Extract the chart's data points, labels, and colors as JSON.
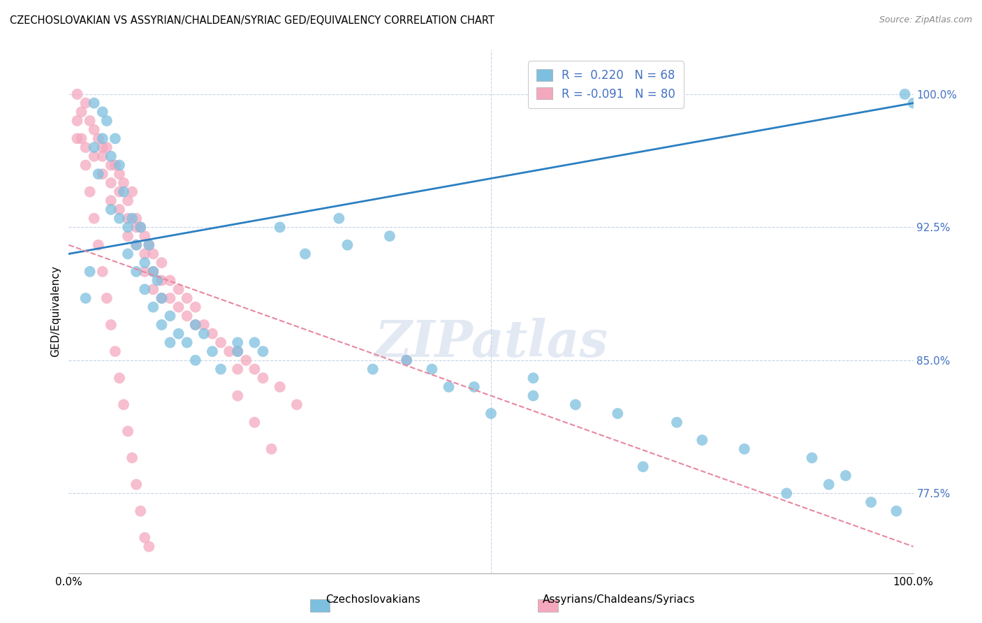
{
  "title": "CZECHOSLOVAKIAN VS ASSYRIAN/CHALDEAN/SYRIAC GED/EQUIVALENCY CORRELATION CHART",
  "source": "Source: ZipAtlas.com",
  "ylabel": "GED/Equivalency",
  "watermark": "ZIPatlas",
  "blue_R": 0.22,
  "blue_N": 68,
  "pink_R": -0.091,
  "pink_N": 80,
  "blue_color": "#7dbfdf",
  "pink_color": "#f4a8be",
  "blue_line_color": "#2b7fc1",
  "pink_line_color": "#e8879e",
  "background_color": "#ffffff",
  "grid_color": "#c8d4e8",
  "title_color": "#000000",
  "source_color": "#888888",
  "tick_color": "#4472c4",
  "xlim": [
    0.0,
    1.0
  ],
  "ylim": [
    73.0,
    102.5
  ],
  "y_ticks": [
    77.5,
    85.0,
    92.5,
    100.0
  ],
  "y_tick_labels": [
    "77.5%",
    "85.0%",
    "92.5%",
    "100.0%"
  ],
  "blue_line_x": [
    0.0,
    1.0
  ],
  "blue_line_y": [
    91.0,
    99.5
  ],
  "pink_line_x": [
    0.0,
    1.0
  ],
  "pink_line_y": [
    91.5,
    74.5
  ],
  "blue_x": [
    0.02,
    0.025,
    0.03,
    0.03,
    0.035,
    0.04,
    0.04,
    0.045,
    0.05,
    0.05,
    0.055,
    0.06,
    0.06,
    0.065,
    0.07,
    0.07,
    0.075,
    0.08,
    0.08,
    0.085,
    0.09,
    0.09,
    0.095,
    0.1,
    0.1,
    0.105,
    0.11,
    0.11,
    0.12,
    0.12,
    0.13,
    0.14,
    0.15,
    0.15,
    0.16,
    0.17,
    0.18,
    0.2,
    0.22,
    0.25,
    0.28,
    0.32,
    0.38,
    0.43,
    0.48,
    0.55,
    0.6,
    0.65,
    0.68,
    0.72,
    0.75,
    0.8,
    0.85,
    0.88,
    0.9,
    0.92,
    0.95,
    0.98,
    0.99,
    1.0,
    0.33,
    0.36,
    0.4,
    0.45,
    0.5,
    0.55,
    0.2,
    0.23
  ],
  "blue_y": [
    88.5,
    90.0,
    99.5,
    97.0,
    95.5,
    99.0,
    97.5,
    98.5,
    96.5,
    93.5,
    97.5,
    96.0,
    93.0,
    94.5,
    92.5,
    91.0,
    93.0,
    91.5,
    90.0,
    92.5,
    90.5,
    89.0,
    91.5,
    90.0,
    88.0,
    89.5,
    88.5,
    87.0,
    87.5,
    86.0,
    86.5,
    86.0,
    87.0,
    85.0,
    86.5,
    85.5,
    84.5,
    85.5,
    86.0,
    92.5,
    91.0,
    93.0,
    92.0,
    84.5,
    83.5,
    83.0,
    82.5,
    82.0,
    79.0,
    81.5,
    80.5,
    80.0,
    77.5,
    79.5,
    78.0,
    78.5,
    77.0,
    76.5,
    100.0,
    99.5,
    91.5,
    84.5,
    85.0,
    83.5,
    82.0,
    84.0,
    86.0,
    85.5
  ],
  "pink_x": [
    0.01,
    0.01,
    0.015,
    0.02,
    0.02,
    0.025,
    0.03,
    0.03,
    0.035,
    0.04,
    0.04,
    0.04,
    0.045,
    0.05,
    0.05,
    0.05,
    0.055,
    0.06,
    0.06,
    0.06,
    0.065,
    0.07,
    0.07,
    0.07,
    0.075,
    0.08,
    0.08,
    0.08,
    0.085,
    0.09,
    0.09,
    0.09,
    0.095,
    0.1,
    0.1,
    0.1,
    0.11,
    0.11,
    0.11,
    0.12,
    0.12,
    0.13,
    0.13,
    0.14,
    0.14,
    0.15,
    0.15,
    0.16,
    0.17,
    0.18,
    0.19,
    0.2,
    0.2,
    0.21,
    0.22,
    0.23,
    0.25,
    0.27,
    0.4,
    0.01,
    0.015,
    0.02,
    0.025,
    0.03,
    0.035,
    0.04,
    0.045,
    0.05,
    0.055,
    0.06,
    0.065,
    0.07,
    0.075,
    0.08,
    0.085,
    0.09,
    0.095,
    0.2,
    0.22,
    0.24
  ],
  "pink_y": [
    100.0,
    97.5,
    99.0,
    99.5,
    97.0,
    98.5,
    98.0,
    96.5,
    97.5,
    97.0,
    96.5,
    95.5,
    97.0,
    96.0,
    95.0,
    94.0,
    96.0,
    95.5,
    94.5,
    93.5,
    95.0,
    94.0,
    93.0,
    92.0,
    94.5,
    93.0,
    92.5,
    91.5,
    92.5,
    92.0,
    91.0,
    90.0,
    91.5,
    91.0,
    90.0,
    89.0,
    90.5,
    89.5,
    88.5,
    89.5,
    88.5,
    89.0,
    88.0,
    88.5,
    87.5,
    88.0,
    87.0,
    87.0,
    86.5,
    86.0,
    85.5,
    85.5,
    84.5,
    85.0,
    84.5,
    84.0,
    83.5,
    82.5,
    85.0,
    98.5,
    97.5,
    96.0,
    94.5,
    93.0,
    91.5,
    90.0,
    88.5,
    87.0,
    85.5,
    84.0,
    82.5,
    81.0,
    79.5,
    78.0,
    76.5,
    75.0,
    74.5,
    83.0,
    81.5,
    80.0
  ]
}
